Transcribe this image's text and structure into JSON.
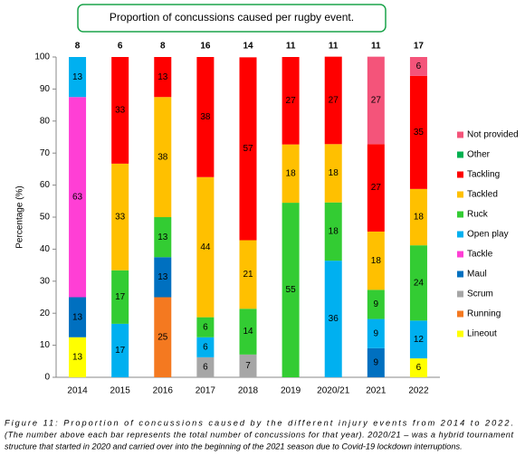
{
  "chart_data": {
    "type": "stacked_bar",
    "title": "Proportion of concussions caused per rugby event.",
    "y_label": "Percentage (%)",
    "categories": [
      "2014",
      "2015",
      "2016",
      "2017",
      "2018",
      "2019",
      "2020/21",
      "2021",
      "2022"
    ],
    "totals": [
      8,
      6,
      8,
      16,
      14,
      11,
      11,
      11,
      17
    ],
    "ylim": [
      0,
      100
    ],
    "yticks": [
      0,
      10,
      20,
      30,
      40,
      50,
      60,
      70,
      80,
      90,
      100
    ],
    "legend": "right",
    "series": [
      {
        "name": "Not provided",
        "color": "#f4547a",
        "values": [
          null,
          null,
          null,
          null,
          null,
          null,
          null,
          27.3,
          5.9
        ],
        "value_labels": [
          null,
          null,
          null,
          null,
          null,
          null,
          null,
          "27",
          "6"
        ]
      },
      {
        "name": "Other",
        "color": "#00b050",
        "values": [
          null,
          null,
          null,
          null,
          null,
          null,
          null,
          null,
          null
        ]
      },
      {
        "name": "Tackling",
        "color": "#ff0000",
        "values": [
          null,
          33.3,
          12.5,
          37.5,
          57.1,
          27.3,
          27.3,
          27.3,
          35.3
        ],
        "value_labels": [
          null,
          "33",
          "13",
          "38",
          "57",
          "27",
          "27",
          "27",
          "35"
        ]
      },
      {
        "name": "Tackled",
        "color": "#ffc000",
        "values": [
          null,
          33.3,
          37.5,
          43.75,
          21.4,
          18.2,
          18.2,
          18.2,
          17.6
        ],
        "value_labels": [
          null,
          "33",
          "38",
          "44",
          "21",
          "18",
          "18",
          "18",
          "18"
        ]
      },
      {
        "name": "Ruck",
        "color": "#33cc33",
        "values": [
          null,
          16.7,
          12.5,
          6.25,
          14.3,
          54.5,
          18.2,
          9.1,
          23.5
        ],
        "value_labels": [
          null,
          "17",
          "13",
          "6",
          "14",
          "55",
          "18",
          "9",
          "24"
        ]
      },
      {
        "name": "Open play",
        "color": "#00b0f0",
        "values": [
          12.5,
          16.7,
          null,
          6.25,
          null,
          null,
          36.4,
          9.1,
          11.8
        ],
        "value_labels": [
          "13",
          "17",
          null,
          "6",
          null,
          null,
          "36",
          "9",
          "12"
        ]
      },
      {
        "name": "Tackle",
        "color": "#ff3fd5",
        "values": [
          62.5,
          null,
          null,
          null,
          null,
          null,
          null,
          null,
          null
        ],
        "value_labels": [
          "63",
          null,
          null,
          null,
          null,
          null,
          null,
          null,
          null
        ]
      },
      {
        "name": "Maul",
        "color": "#0070c0",
        "values": [
          12.5,
          null,
          12.5,
          null,
          null,
          null,
          null,
          9.1,
          null
        ],
        "value_labels": [
          "13",
          null,
          "13",
          null,
          null,
          null,
          null,
          "9",
          null
        ]
      },
      {
        "name": "Scrum",
        "color": "#a6a6a6",
        "values": [
          null,
          null,
          null,
          6.25,
          7.1,
          null,
          null,
          null,
          null
        ],
        "value_labels": [
          null,
          null,
          null,
          "6",
          "7",
          null,
          null,
          null,
          null
        ]
      },
      {
        "name": "Running",
        "color": "#f47920",
        "values": [
          null,
          null,
          25,
          null,
          null,
          null,
          null,
          null,
          null
        ]
      },
      {
        "name": "Lineout",
        "color": "#ffff00",
        "values": [
          12.5,
          null,
          null,
          null,
          null,
          null,
          null,
          null,
          5.9
        ],
        "value_labels": [
          "13",
          null,
          null,
          null,
          null,
          null,
          null,
          null,
          "6"
        ]
      }
    ],
    "caption": [
      "Figure 11: Proportion of concussions caused by the different injury events from 2014 to 2022.",
      "(The number above each bar represents the total number of concussions for that year). 2020/21 – was a hybrid tournament",
      "structure that started in 2020 and carried over into the beginning of the 2021 season due to Covid-19 lockdown interruptions."
    ]
  }
}
